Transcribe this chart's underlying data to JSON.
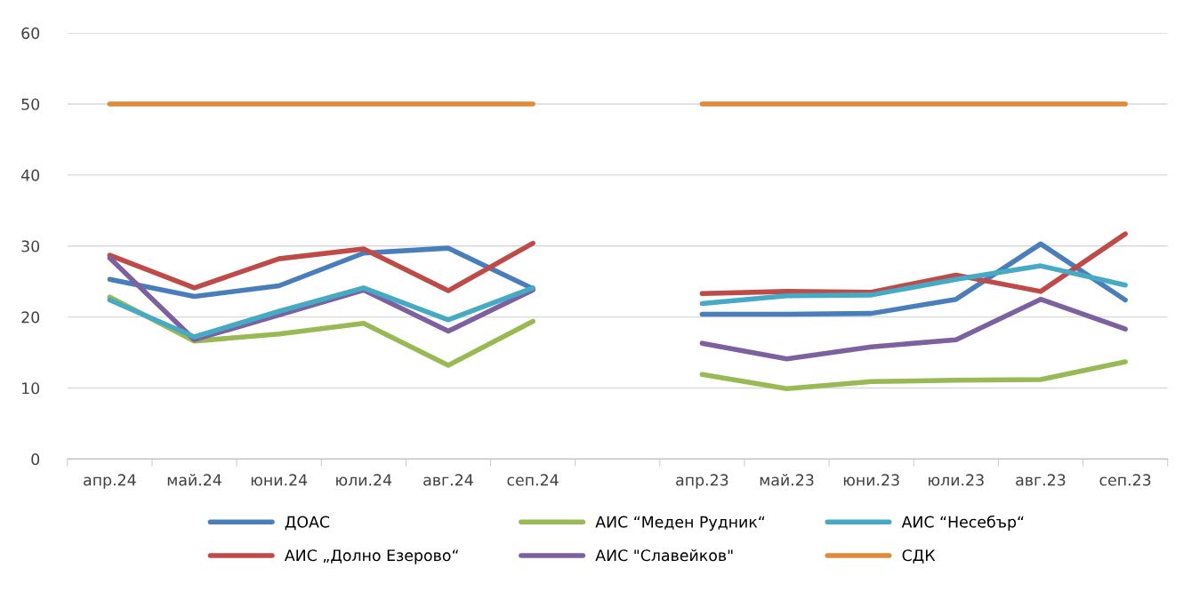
{
  "chart_data": {
    "type": "line",
    "categories": [
      "апр.24",
      "май.24",
      "юни.24",
      "юли.24",
      "авг.24",
      "сеп.24",
      null,
      "апр.23",
      "май.23",
      "юни.23",
      "юли.23",
      "авг.23",
      "сеп.23"
    ],
    "series": [
      {
        "name": "ДОАС",
        "color": "#4a7ebb",
        "values": [
          25.3,
          22.9,
          24.4,
          29.0,
          29.7,
          24.0,
          null,
          20.4,
          20.4,
          20.5,
          22.5,
          30.3,
          22.4
        ]
      },
      {
        "name": "АИС „Долно Езерово“",
        "color": "#be4b48",
        "values": [
          28.7,
          24.1,
          28.2,
          29.6,
          23.7,
          30.4,
          null,
          23.3,
          23.6,
          23.5,
          25.9,
          23.6,
          31.7
        ]
      },
      {
        "name": "АИС “Меден Рудник“",
        "color": "#98b954",
        "values": [
          22.8,
          16.6,
          17.6,
          19.1,
          13.2,
          19.4,
          null,
          11.9,
          9.9,
          10.9,
          11.1,
          11.2,
          13.7
        ]
      },
      {
        "name": "АИС \"Славейков\"",
        "color": "#7d60a0",
        "values": [
          28.3,
          16.8,
          20.3,
          23.8,
          18.0,
          23.8,
          null,
          16.3,
          14.1,
          15.8,
          16.8,
          22.5,
          18.3
        ]
      },
      {
        "name": "АИС “Несебър“",
        "color": "#46aac5",
        "values": [
          22.4,
          17.2,
          20.8,
          24.1,
          19.6,
          24.1,
          null,
          21.9,
          23.0,
          23.1,
          25.3,
          27.2,
          24.5
        ]
      },
      {
        "name": "СДК",
        "color": "#e08a3c",
        "values": [
          50,
          50,
          50,
          50,
          50,
          50,
          null,
          50,
          50,
          50,
          50,
          50,
          50
        ]
      }
    ],
    "ylim": [
      0,
      60
    ],
    "yticks": [
      0,
      10,
      20,
      30,
      40,
      50,
      60
    ],
    "grid": "y",
    "legend": "bottom",
    "marker": "none",
    "line_style": "solid"
  }
}
